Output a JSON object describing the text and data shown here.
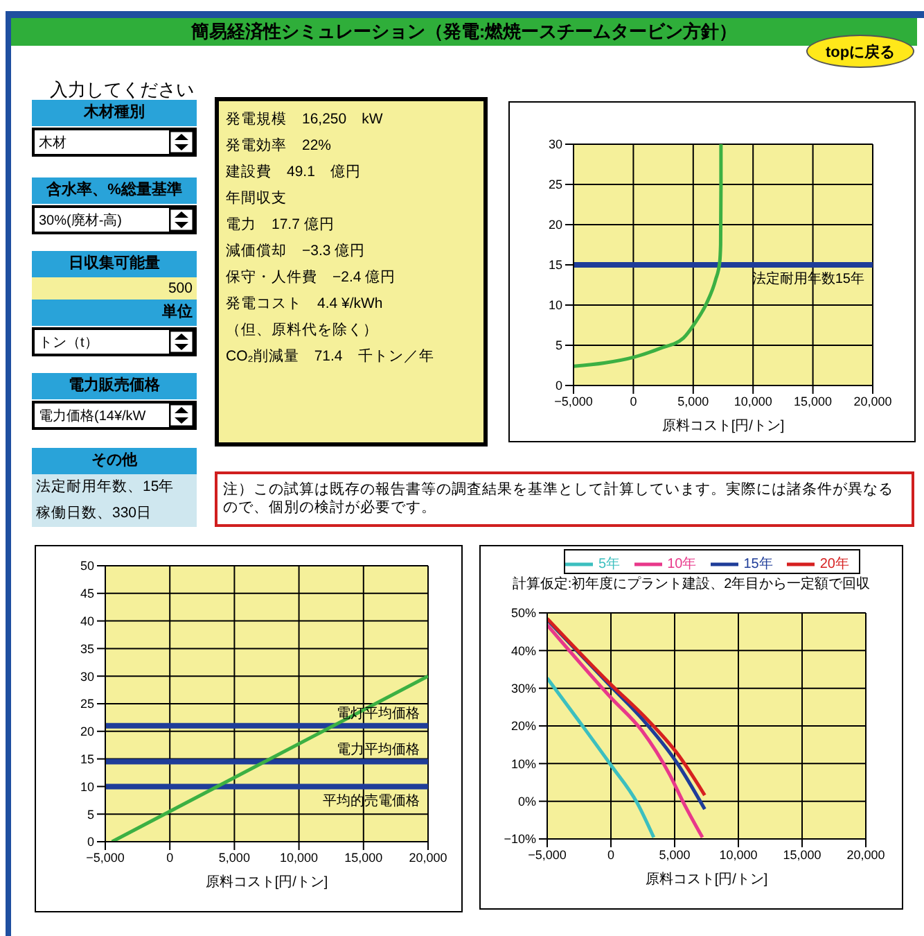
{
  "chart_data": [
    {
      "type": "other",
      "title": "簡易経済性シミュレーション（発電:燃焼ースチームタービン方針）",
      "annotations": [
        "topに戻る"
      ]
    },
    {
      "type": "other",
      "title": "入力してください"
    },
    {
      "type": "other",
      "title": "木材種別",
      "annotations": [
        "木材"
      ]
    },
    {
      "type": "other",
      "title": "含水率、%総量基準",
      "annotations": [
        "30%(廃材-高)"
      ]
    },
    {
      "type": "other",
      "title": "日収集可能量",
      "annotations": [
        "500"
      ]
    },
    {
      "type": "other",
      "title": "単位",
      "annotations": [
        "トン（t）"
      ]
    },
    {
      "type": "other",
      "title": "電力販売価格",
      "annotations": [
        "電力価格(14¥/kW"
      ]
    },
    {
      "type": "other",
      "title": "その他",
      "annotations": [
        "法定耐用年数、15年",
        "稼働日数、330日"
      ]
    },
    {
      "type": "other",
      "annotations": [
        "発電規模　16,250　kW",
        "発電効率　22%",
        "建設費　49.1　億円",
        "年間収支",
        "電力　17.7 億円",
        "減価償却　−3.3 億円",
        "保守・人件費　−2.4 億円",
        "発電コスト　4.4 ¥/kWh",
        "（但、原料代を除く）",
        "CO₂削減量　71.4　千トン／年"
      ]
    },
    {
      "type": "other",
      "annotations": [
        "注）この試算は既存の報告書等の調査結果を基準として計算しています。実際には諸条件が異なるので、個別の検討が必要です。"
      ]
    },
    {
      "type": "line",
      "xlabel": "原料コスト[円/トン]",
      "xlim": [
        -5000,
        20000
      ],
      "xticks": [
        {
          "value": -5000,
          "label": "−5,000"
        },
        {
          "value": 0,
          "label": "0"
        },
        {
          "value": 5000,
          "label": "5,000"
        },
        {
          "value": 10000,
          "label": "10,000"
        },
        {
          "value": 15000,
          "label": "15,000"
        },
        {
          "value": 20000,
          "label": "20,000"
        }
      ],
      "ylim": [
        0,
        30
      ],
      "yticks": [
        0,
        5,
        10,
        15,
        20,
        25,
        30
      ],
      "grid": true,
      "legend": false,
      "marker": "none",
      "ref_lines": [
        {
          "axis": "y",
          "value": 15,
          "label": "法定耐用年数15年",
          "color": "#1f3d99"
        }
      ],
      "series": [
        {
          "color": "#3cb043",
          "x": [
            -5000,
            -2430,
            0,
            2210,
            4180,
            5070,
            6140,
            6860,
            7210,
            7290,
            7320,
            7320
          ],
          "values": [
            2.4,
            2.8,
            3.5,
            4.6,
            5.9,
            7.6,
            10.3,
            13.1,
            15.3,
            17.5,
            24.7,
            30
          ]
        }
      ]
    },
    {
      "type": "line",
      "xlabel": "原料コスト[円/トン]",
      "xlim": [
        -5000,
        20000
      ],
      "xticks": [
        {
          "value": -5000,
          "label": "−5,000"
        },
        {
          "value": 0,
          "label": "0"
        },
        {
          "value": 5000,
          "label": "5,000"
        },
        {
          "value": 10000,
          "label": "10,000"
        },
        {
          "value": 15000,
          "label": "15,000"
        },
        {
          "value": 20000,
          "label": "20,000"
        }
      ],
      "ylim": [
        0,
        50
      ],
      "yticks": [
        0,
        5,
        10,
        15,
        20,
        25,
        30,
        35,
        40,
        45,
        50
      ],
      "grid": true,
      "legend": false,
      "marker": "none",
      "ref_lines": [
        {
          "axis": "y",
          "value": 21,
          "label": "電灯平均価格",
          "color": "#1f3d99"
        },
        {
          "axis": "y",
          "value": 14.5,
          "label": "電力平均価格",
          "color": "#1f3d99"
        },
        {
          "axis": "y",
          "value": 10,
          "label": "平均的売電価格",
          "color": "#1f3d99"
        }
      ],
      "series": [
        {
          "color": "#3cb043",
          "x": [
            -4480,
            20000
          ],
          "values": [
            0,
            30
          ]
        }
      ]
    },
    {
      "type": "line",
      "subtitle": "計算仮定:初年度にプラント建設、2年目から一定額で回収",
      "xlabel": "原料コスト[円/トン]",
      "xlim": [
        -5000,
        20000
      ],
      "xticks": [
        {
          "value": -5000,
          "label": "−5,000"
        },
        {
          "value": 0,
          "label": "0"
        },
        {
          "value": 5000,
          "label": "5,000"
        },
        {
          "value": 10000,
          "label": "10,000"
        },
        {
          "value": 15000,
          "label": "15,000"
        },
        {
          "value": 20000,
          "label": "20,000"
        }
      ],
      "ylim": [
        -10,
        50
      ],
      "yticks": [
        {
          "value": -10,
          "label": "−10%"
        },
        {
          "value": 0,
          "label": "0%"
        },
        {
          "value": 10,
          "label": "10%"
        },
        {
          "value": 20,
          "label": "20%"
        },
        {
          "value": 30,
          "label": "30%"
        },
        {
          "value": 40,
          "label": "40%"
        },
        {
          "value": 50,
          "label": "50%"
        }
      ],
      "grid": true,
      "legend": "top",
      "marker": "none",
      "series": [
        {
          "name": "5年",
          "color": "#3cbfbf",
          "x": [
            -5000,
            -2640,
            0,
            2070,
            3360
          ],
          "values": [
            32.7,
            21.9,
            9.6,
            -0.5,
            -9.6
          ]
        },
        {
          "name": "10年",
          "color": "#e8388a",
          "x": [
            -5000,
            0,
            2440,
            4620,
            5710,
            7180
          ],
          "values": [
            46.8,
            27.5,
            18.7,
            7,
            -0.5,
            -9.6
          ]
        },
        {
          "name": "15年",
          "color": "#1f3d99",
          "x": [
            -5000,
            0,
            2440,
            5180,
            7360
          ],
          "values": [
            48.2,
            30.5,
            21.9,
            10.2,
            -2.1
          ]
        },
        {
          "name": "20年",
          "color": "#d62020",
          "x": [
            -5000,
            0,
            2800,
            5180,
            7360
          ],
          "values": [
            48.5,
            31,
            21.9,
            12.8,
            1.6
          ]
        }
      ]
    }
  ]
}
